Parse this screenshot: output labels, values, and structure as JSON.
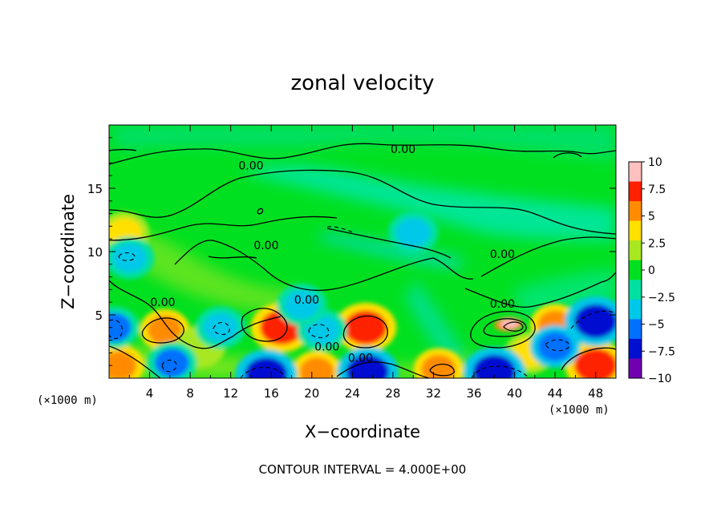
{
  "chart_data": {
    "type": "heatmap",
    "title": "zonal velocity",
    "xlabel": "X−coordinate",
    "ylabel": "Z−coordinate",
    "x_unit_left": "(×1000 m)",
    "x_unit_right": "(×1000 m)",
    "xlim": [
      0,
      50
    ],
    "ylim": [
      0,
      20
    ],
    "x_ticks": [
      4,
      8,
      12,
      16,
      20,
      24,
      28,
      32,
      36,
      40,
      44,
      48
    ],
    "x_tick_labels": [
      "4",
      "8",
      "12",
      "16",
      "20",
      "24",
      "28",
      "32",
      "36",
      "40",
      "44",
      "48"
    ],
    "y_ticks": [
      5,
      10,
      15
    ],
    "y_tick_labels": [
      "5",
      "10",
      "15"
    ],
    "colorbar": {
      "range": [
        -10,
        10
      ],
      "ticks": [
        10,
        7.5,
        5,
        2.5,
        0,
        -2.5,
        -5,
        -7.5,
        -10
      ],
      "tick_labels": [
        "10",
        "7.5",
        "5",
        "2.5",
        "0",
        "−2.5",
        "−5",
        "−7.5",
        "−10"
      ],
      "colors": [
        "#ffc0c0",
        "#ff2000",
        "#ff8c00",
        "#ffe000",
        "#a8e820",
        "#00e020",
        "#00e0a0",
        "#00c8e8",
        "#0070ff",
        "#0010d0",
        "#7000b0"
      ]
    },
    "background_value": 0.5,
    "features": [
      {
        "x": 39.3,
        "z": 4.2,
        "value": 9.5
      },
      {
        "x": 39.5,
        "z": 4.3,
        "value": 10.5
      },
      {
        "x": 17,
        "z": 4.0,
        "value": 7.5
      },
      {
        "x": 25.3,
        "z": 4.0,
        "value": 7.5
      },
      {
        "x": 5.5,
        "z": 3.8,
        "value": 5.5
      },
      {
        "x": 44,
        "z": 4.2,
        "value": 5.5
      },
      {
        "x": 32.5,
        "z": 0.7,
        "value": 6
      },
      {
        "x": 20.5,
        "z": 0.5,
        "value": 6
      },
      {
        "x": 1,
        "z": 1.0,
        "value": 5.5
      },
      {
        "x": 48,
        "z": 1.0,
        "value": 7.5
      },
      {
        "x": 41.5,
        "z": 2.0,
        "value": 4
      },
      {
        "x": 1.5,
        "z": 11.5,
        "value": 4
      },
      {
        "x": 9,
        "z": 2.5,
        "value": 3
      },
      {
        "x": 15.5,
        "z": 0.3,
        "value": -8.5
      },
      {
        "x": 25.5,
        "z": 0.5,
        "value": -8
      },
      {
        "x": 38,
        "z": 0.5,
        "value": -8.5
      },
      {
        "x": 48,
        "z": 4.5,
        "value": -8
      },
      {
        "x": 44,
        "z": 2.5,
        "value": -6
      },
      {
        "x": 6.2,
        "z": 1.2,
        "value": -5
      },
      {
        "x": 0.5,
        "z": 4.0,
        "value": -5
      },
      {
        "x": 11,
        "z": 4.0,
        "value": -4
      },
      {
        "x": 21,
        "z": 3.8,
        "value": -4
      },
      {
        "x": 2,
        "z": 9.5,
        "value": -4
      },
      {
        "x": 19,
        "z": 5.8,
        "value": -3
      },
      {
        "x": 30,
        "z": 11.5,
        "value": -3
      }
    ],
    "contour_labels": [
      {
        "text": "0.00",
        "x": 29,
        "z": 18.1
      },
      {
        "text": "0.00",
        "x": 14,
        "z": 16.8
      },
      {
        "text": "0.00",
        "x": 15.5,
        "z": 10.5
      },
      {
        "text": "0.00",
        "x": 38.8,
        "z": 9.8
      },
      {
        "text": "0.00",
        "x": 5.3,
        "z": 6.0
      },
      {
        "text": "0.00",
        "x": 19.5,
        "z": 6.2
      },
      {
        "text": "0.00",
        "x": 38.8,
        "z": 5.9
      },
      {
        "text": "0.00",
        "x": 21.5,
        "z": 2.5
      },
      {
        "text": "0.00",
        "x": 24.8,
        "z": 1.6
      }
    ]
  },
  "footer": {
    "contour_interval": "CONTOUR INTERVAL = 4.000E+00"
  }
}
